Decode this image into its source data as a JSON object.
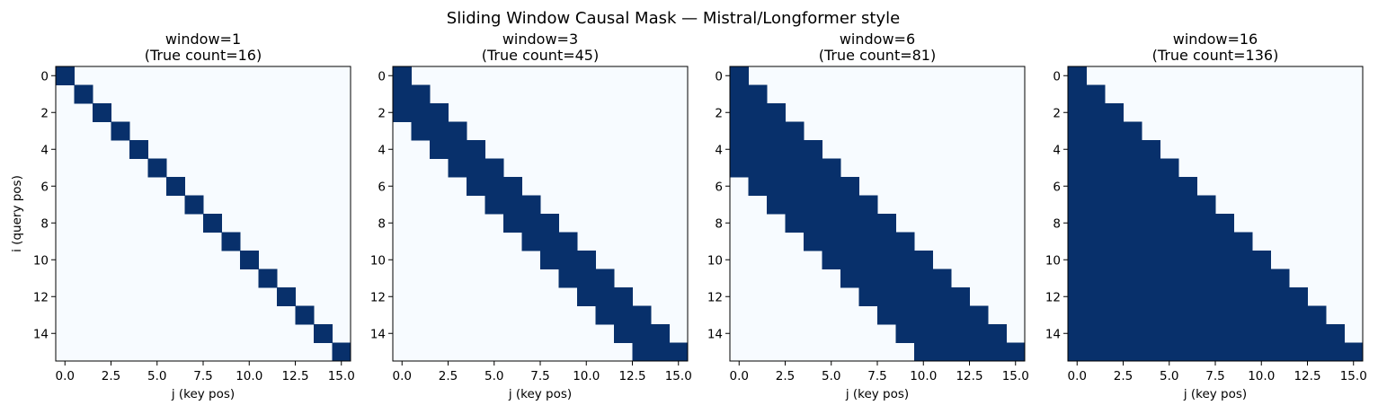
{
  "figure": {
    "suptitle": "Sliding Window Causal Mask — Mistral/Longformer style"
  },
  "chart_data": [
    {
      "type": "heatmap",
      "title_line1": "window=1",
      "title_line2": "(True count=16)",
      "window": 1,
      "n": 16,
      "true_count": 16,
      "rule": "cell (i,j) is True when j <= i and i - j < window",
      "xlabel": "j (key pos)",
      "ylabel": "i (query pos)",
      "xticks": [
        "0.0",
        "2.5",
        "5.0",
        "7.5",
        "10.0",
        "12.5",
        "15.0"
      ],
      "yticks": [
        "0",
        "2",
        "4",
        "6",
        "8",
        "10",
        "12",
        "14"
      ],
      "colors": {
        "true": "#08306b",
        "false": "#f7fbff"
      }
    },
    {
      "type": "heatmap",
      "title_line1": "window=3",
      "title_line2": "(True count=45)",
      "window": 3,
      "n": 16,
      "true_count": 45,
      "rule": "cell (i,j) is True when j <= i and i - j < window",
      "xlabel": "j (key pos)",
      "ylabel": "",
      "xticks": [
        "0.0",
        "2.5",
        "5.0",
        "7.5",
        "10.0",
        "12.5",
        "15.0"
      ],
      "yticks": [
        "0",
        "2",
        "4",
        "6",
        "8",
        "10",
        "12",
        "14"
      ],
      "colors": {
        "true": "#08306b",
        "false": "#f7fbff"
      }
    },
    {
      "type": "heatmap",
      "title_line1": "window=6",
      "title_line2": "(True count=81)",
      "window": 6,
      "n": 16,
      "true_count": 81,
      "rule": "cell (i,j) is True when j <= i and i - j < window",
      "xlabel": "j (key pos)",
      "ylabel": "",
      "xticks": [
        "0.0",
        "2.5",
        "5.0",
        "7.5",
        "10.0",
        "12.5",
        "15.0"
      ],
      "yticks": [
        "0",
        "2",
        "4",
        "6",
        "8",
        "10",
        "12",
        "14"
      ],
      "colors": {
        "true": "#08306b",
        "false": "#f7fbff"
      }
    },
    {
      "type": "heatmap",
      "title_line1": "window=16",
      "title_line2": "(True count=136)",
      "window": 16,
      "n": 16,
      "true_count": 136,
      "rule": "cell (i,j) is True when j <= i and i - j < window",
      "xlabel": "j (key pos)",
      "ylabel": "",
      "xticks": [
        "0.0",
        "2.5",
        "5.0",
        "7.5",
        "10.0",
        "12.5",
        "15.0"
      ],
      "yticks": [
        "0",
        "2",
        "4",
        "6",
        "8",
        "10",
        "12",
        "14"
      ],
      "colors": {
        "true": "#08306b",
        "false": "#f7fbff"
      }
    }
  ]
}
